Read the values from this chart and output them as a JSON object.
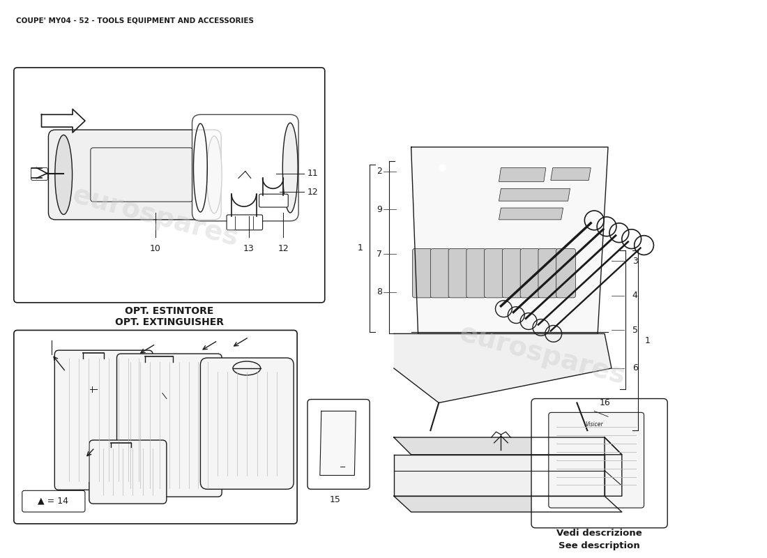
{
  "title": "COUPE' MY04 - 52 - TOOLS EQUIPMENT AND ACCESSORIES",
  "bg_color": "#ffffff",
  "watermark_text": "eurospares",
  "watermark_color": "#cccccc",
  "extinguisher_label1": "OPT. ESTINTORE",
  "extinguisher_label2": "OPT. EXTINGUISHER",
  "luggage_label": "▲ = 14",
  "see_description": "Vedi descrizione\nSee description",
  "line_color": "#1a1a1a",
  "light_gray": "#f0f0f0",
  "mid_gray": "#e0e0e0",
  "dark_gray": "#cccccc"
}
